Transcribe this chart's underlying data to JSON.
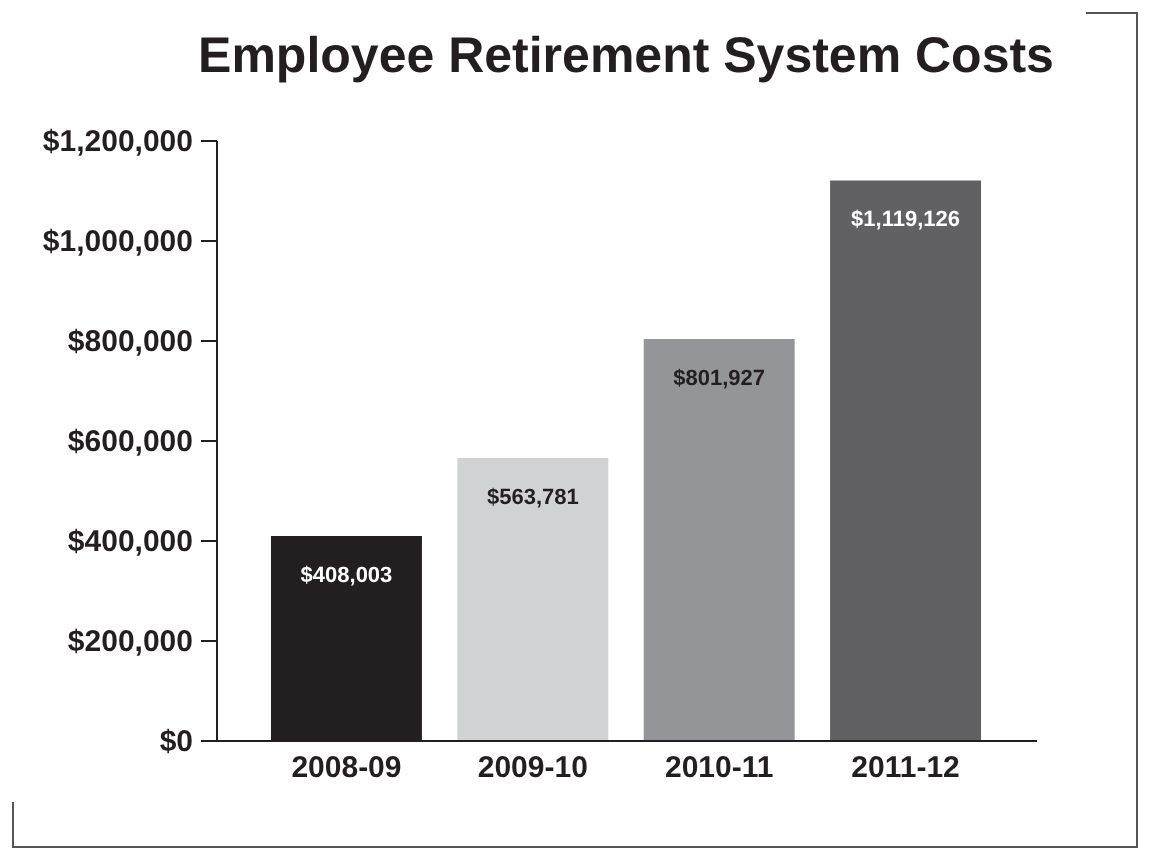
{
  "chart_data": {
    "type": "bar",
    "title": "Employee Retirement System Costs",
    "categories": [
      "2008-09",
      "2009-10",
      "2010-11",
      "2011-12"
    ],
    "values": [
      408003,
      563781,
      801927,
      1119126
    ],
    "colors": [
      "#231f20",
      "#d1d2d4",
      "#939598",
      "#616163"
    ],
    "value_labels": [
      "$408,003",
      "$563,781",
      "$801,927",
      "$1,119,126"
    ],
    "ylim": [
      0,
      1200000
    ],
    "yticks": [
      {
        "value": 0,
        "label": "$0"
      },
      {
        "value": 200000,
        "label": "$200,000"
      },
      {
        "value": 400000,
        "label": "$400,000"
      },
      {
        "value": 600000,
        "label": "$600,000"
      },
      {
        "value": 800000,
        "label": "$800,000"
      },
      {
        "value": 1000000,
        "label": "$1,000,000"
      },
      {
        "value": 1200000,
        "label": "$1,200,000"
      }
    ],
    "grid": false
  }
}
